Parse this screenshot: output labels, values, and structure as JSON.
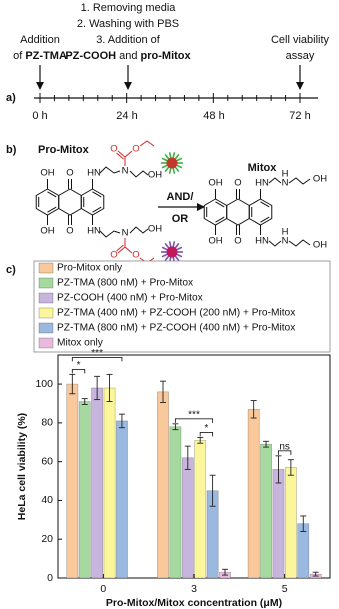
{
  "timeline": {
    "label": "a)",
    "events": [
      {
        "lines": [
          [
            "Addition"
          ],
          [
            "of ",
            "PZ-TMA"
          ]
        ]
      },
      {
        "lines": [
          [
            "1. Removing media"
          ],
          [
            "2. Washing with PBS"
          ],
          [
            "3. Addition of"
          ],
          [
            "PZ-COOH",
            " and ",
            "pro-Mitox"
          ]
        ]
      },
      {
        "lines": [
          [
            "Cell viability"
          ],
          [
            "assay"
          ]
        ]
      }
    ],
    "times": [
      "0 h",
      "24 h",
      "48 h",
      "72 h"
    ]
  },
  "scheme": {
    "label": "b)",
    "reactant": "Pro-Mitox",
    "product": "Mitox",
    "condition": [
      "AND/",
      "OR"
    ],
    "reactant_atoms": {
      "top": [
        "OH",
        "O",
        "HN",
        "N",
        "O",
        "O",
        "OH"
      ],
      "bottom": [
        "OH",
        "O",
        "HN",
        "N",
        "O",
        "O",
        "OH"
      ]
    },
    "product_atoms": {
      "top": [
        "OH",
        "O",
        "HN",
        "H",
        "N",
        "OH"
      ],
      "bottom": [
        "OH",
        "O",
        "HN",
        "H",
        "N",
        "OH"
      ]
    }
  },
  "chart_data": {
    "type": "bar",
    "label": "c)",
    "ylabel": "HeLa cell viability (%)",
    "xlabel": "Pro-Mitox/Mitox concentration (μM)",
    "categories": [
      "0",
      "3",
      "5"
    ],
    "series": [
      {
        "name": "Pro-Mitox only",
        "color": "#f9c89b",
        "values": [
          100,
          96,
          87
        ],
        "errors": [
          5,
          5.5,
          4.5
        ]
      },
      {
        "name": "PZ-TMA (800 nM) + Pro-Mitox",
        "color": "#a6d9a0",
        "values": [
          91,
          78,
          69
        ],
        "errors": [
          1.5,
          1.5,
          1.5
        ]
      },
      {
        "name": "PZ-COOH (400 nM) + Pro-Mitox",
        "color": "#c7b5dd",
        "values": [
          98,
          62,
          56
        ],
        "errors": [
          6,
          6,
          7
        ]
      },
      {
        "name": "PZ-TMA (400 nM) + PZ-COOH (200 nM) + Pro-Mitox",
        "color": "#fbf59b",
        "values": [
          98,
          71,
          57
        ],
        "errors": [
          7,
          1.5,
          4
        ]
      },
      {
        "name": "PZ-TMA (800 nM) + PZ-COOH (400 nM) + Pro-Mitox",
        "color": "#9bb9e0",
        "values": [
          81,
          45,
          28
        ],
        "errors": [
          3.5,
          8,
          4
        ]
      },
      {
        "name": "Mitox only",
        "color": "#eab9de",
        "values": [
          null,
          3,
          2
        ],
        "errors": [
          null,
          1.5,
          1
        ]
      }
    ],
    "annotations": [
      {
        "label": "*",
        "category": "0",
        "between": [
          "Pro-Mitox only",
          "PZ-TMA (800 nM) + Pro-Mitox"
        ]
      },
      {
        "label": "***",
        "category": "0",
        "between": [
          "Pro-Mitox only",
          "PZ-TMA (800 nM) + PZ-COOH (400 nM) + Pro-Mitox"
        ]
      },
      {
        "label": "***",
        "category": "3",
        "between": [
          "PZ-TMA (800 nM) + Pro-Mitox",
          "PZ-TMA (800 nM) + PZ-COOH (400 nM) + Pro-Mitox"
        ]
      },
      {
        "label": "*",
        "category": "3",
        "between": [
          "PZ-TMA (400 nM) + PZ-COOH (200 nM) + Pro-Mitox",
          "PZ-TMA (800 nM) + PZ-COOH (400 nM) + Pro-Mitox"
        ]
      },
      {
        "label": "ns",
        "category": "5",
        "between": [
          "PZ-COOH (400 nM) + Pro-Mitox",
          "PZ-TMA (400 nM) + PZ-COOH (200 nM) + Pro-Mitox"
        ]
      }
    ],
    "ylim": [
      0,
      115
    ],
    "yticks": [
      0,
      20,
      40,
      60,
      80,
      100
    ],
    "grid": false,
    "legend": "top"
  }
}
